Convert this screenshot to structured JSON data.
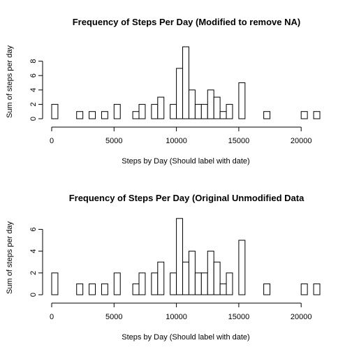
{
  "chart_data": [
    {
      "type": "bar",
      "title": "Frequency of Steps Per Day (Modified to remove NA)",
      "xlabel": "Steps by Day (Should label with date)",
      "ylabel": "Sum of steps per day",
      "bin_width": 500,
      "xlim": [
        0,
        21500
      ],
      "ylim": [
        0,
        10
      ],
      "xticks": [
        "0",
        "5000",
        "10000",
        "15000",
        "20000"
      ],
      "yticks": [
        "0",
        "2",
        "4",
        "6",
        "8"
      ],
      "values": [
        2,
        0,
        0,
        0,
        1,
        0,
        1,
        0,
        1,
        0,
        2,
        0,
        0,
        1,
        2,
        0,
        2,
        3,
        0,
        2,
        7,
        10,
        4,
        2,
        2,
        4,
        3,
        1,
        2,
        0,
        5,
        0,
        0,
        0,
        1,
        0,
        0,
        0,
        0,
        0,
        1,
        0,
        1
      ]
    },
    {
      "type": "bar",
      "title": "Frequency of Steps Per Day (Original Unmodified Data",
      "xlabel": "Steps by Day (Should label with date)",
      "ylabel": "Sum of steps per day",
      "bin_width": 500,
      "xlim": [
        0,
        21500
      ],
      "ylim": [
        0,
        7
      ],
      "xticks": [
        "0",
        "5000",
        "10000",
        "15000",
        "20000"
      ],
      "yticks": [
        "0",
        "2",
        "4",
        "6"
      ],
      "values": [
        2,
        0,
        0,
        0,
        1,
        0,
        1,
        0,
        1,
        0,
        2,
        0,
        0,
        1,
        2,
        0,
        2,
        3,
        0,
        2,
        7,
        3,
        4,
        2,
        2,
        4,
        3,
        1,
        2,
        0,
        5,
        0,
        0,
        0,
        1,
        0,
        0,
        0,
        0,
        0,
        1,
        0,
        1
      ]
    }
  ]
}
